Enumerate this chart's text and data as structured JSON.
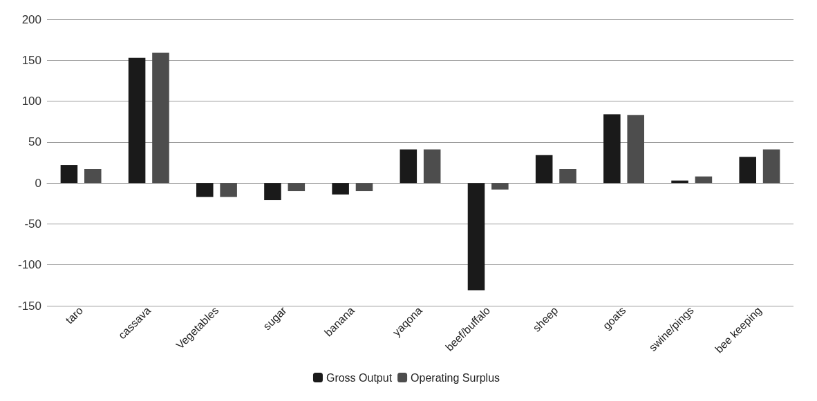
{
  "chart_data": {
    "type": "bar",
    "categories": [
      "taro",
      "cassava",
      "Vegetables",
      "sugar",
      "banana",
      "yaqona",
      "beef/buffalo",
      "sheep",
      "goats",
      "swine/pings",
      "bee keeping"
    ],
    "series": [
      {
        "name": "Gross Output",
        "color": "#1a1a1a",
        "values": [
          22,
          153,
          -17,
          -21,
          -14,
          41,
          -131,
          34,
          84,
          3,
          32
        ]
      },
      {
        "name": "Operating Surplus",
        "color": "#4d4d4d",
        "values": [
          17,
          159,
          -17,
          -10,
          -10,
          41,
          -8,
          17,
          83,
          8,
          41
        ]
      }
    ],
    "ylim": [
      -150,
      200
    ],
    "yticks": [
      -150,
      -100,
      -50,
      0,
      50,
      100,
      150,
      200
    ],
    "grid": "y",
    "legend": "bottom"
  }
}
